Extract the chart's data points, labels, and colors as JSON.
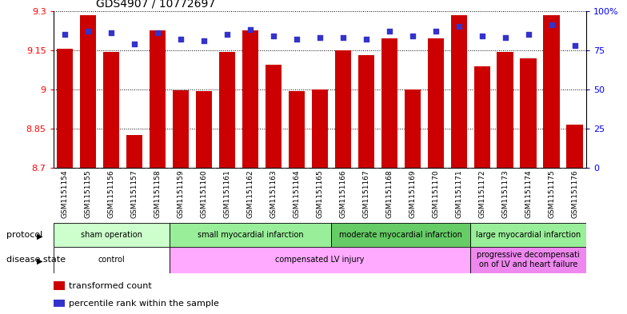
{
  "title": "GDS4907 / 10772697",
  "samples": [
    "GSM1151154",
    "GSM1151155",
    "GSM1151156",
    "GSM1151157",
    "GSM1151158",
    "GSM1151159",
    "GSM1151160",
    "GSM1151161",
    "GSM1151162",
    "GSM1151163",
    "GSM1151164",
    "GSM1151165",
    "GSM1151166",
    "GSM1151167",
    "GSM1151168",
    "GSM1151169",
    "GSM1151170",
    "GSM1151171",
    "GSM1151172",
    "GSM1151173",
    "GSM1151174",
    "GSM1151175",
    "GSM1151176"
  ],
  "bar_values": [
    9.155,
    9.285,
    9.143,
    8.825,
    9.225,
    8.998,
    8.993,
    9.145,
    9.225,
    9.095,
    8.995,
    9.0,
    9.15,
    9.13,
    9.195,
    9.0,
    9.195,
    9.285,
    9.09,
    9.145,
    9.12,
    9.285,
    8.865
  ],
  "percentile_values": [
    85,
    87,
    86,
    79,
    86,
    82,
    81,
    85,
    88,
    84,
    82,
    83,
    83,
    82,
    87,
    84,
    87,
    90,
    84,
    83,
    85,
    91,
    78
  ],
  "ymin": 8.7,
  "ymax": 9.3,
  "right_yticks": [
    0,
    25,
    50,
    75,
    100
  ],
  "right_yticklabels": [
    "0",
    "25",
    "50",
    "75",
    "100%"
  ],
  "left_yticks": [
    8.7,
    8.85,
    9.0,
    9.15,
    9.3
  ],
  "left_yticklabels": [
    "8.7",
    "8.85",
    "9",
    "9.15",
    "9.3"
  ],
  "bar_color": "#cc0000",
  "dot_color": "#3333cc",
  "protocol_groups": [
    {
      "label": "sham operation",
      "start": 0,
      "end": 4,
      "color": "#ccffcc"
    },
    {
      "label": "small myocardial infarction",
      "start": 5,
      "end": 11,
      "color": "#99ee99"
    },
    {
      "label": "moderate myocardial infarction",
      "start": 12,
      "end": 17,
      "color": "#66cc66"
    },
    {
      "label": "large myocardial infarction",
      "start": 18,
      "end": 22,
      "color": "#99ee99"
    }
  ],
  "disease_groups": [
    {
      "label": "control",
      "start": 0,
      "end": 4,
      "color": "#ffffff"
    },
    {
      "label": "compensated LV injury",
      "start": 5,
      "end": 17,
      "color": "#ffaaff"
    },
    {
      "label": "progressive decompensati\non of LV and heart failure",
      "start": 18,
      "end": 22,
      "color": "#ee88ee"
    }
  ],
  "protocol_label": "protocol",
  "disease_label": "disease state",
  "legend_bar_label": "transformed count",
  "legend_dot_label": "percentile rank within the sample",
  "bg_color": "#ffffff",
  "tick_area_bg": "#cccccc"
}
